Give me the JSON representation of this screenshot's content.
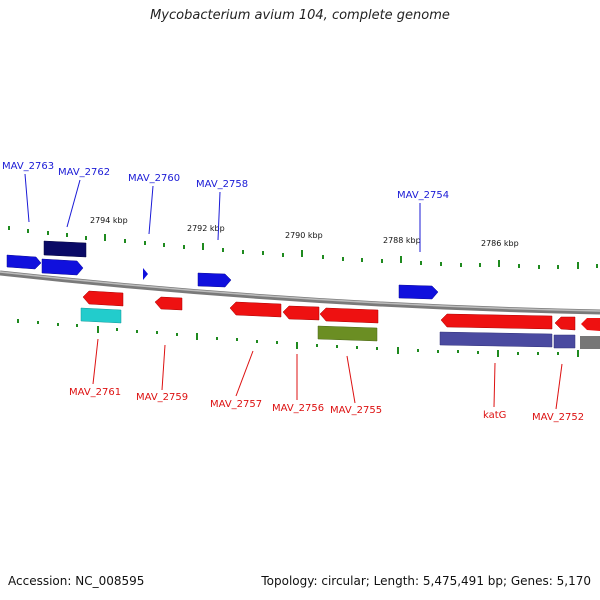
{
  "title": "Mycobacterium avium 104, complete genome",
  "footer": {
    "accession": "Accession: NC_008595",
    "summary": "Topology: circular; Length: 5,475,491 bp; Genes: 5,170"
  },
  "colors": {
    "forward_label": "#1a1ad6",
    "reverse_label": "#dd1111",
    "backbone": "#8c8c8c",
    "tick": "#1f8a1f"
  },
  "kbp_labels": [
    {
      "text": "2794 kbp"
    },
    {
      "text": "2792 kbp"
    },
    {
      "text": "2790 kbp"
    },
    {
      "text": "2788 kbp"
    },
    {
      "text": "2786 kbp"
    }
  ],
  "gene_labels": [
    {
      "text": "MAV_2763",
      "strand": "forward"
    },
    {
      "text": "MAV_2762",
      "strand": "forward"
    },
    {
      "text": "MAV_2760",
      "strand": "forward"
    },
    {
      "text": "MAV_2758",
      "strand": "forward"
    },
    {
      "text": "MAV_2754",
      "strand": "forward"
    },
    {
      "text": "MAV_2761",
      "strand": "reverse"
    },
    {
      "text": "MAV_2759",
      "strand": "reverse"
    },
    {
      "text": "MAV_2757",
      "strand": "reverse"
    },
    {
      "text": "MAV_2756",
      "strand": "reverse"
    },
    {
      "text": "MAV_2755",
      "strand": "reverse"
    },
    {
      "text": "katG",
      "strand": "reverse"
    },
    {
      "text": "MAV_2752",
      "strand": "reverse"
    }
  ]
}
